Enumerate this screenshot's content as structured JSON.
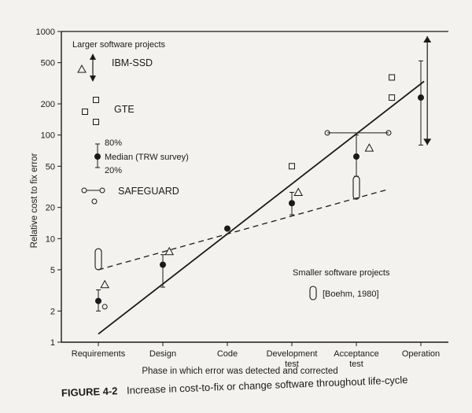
{
  "caption": {
    "label": "FIGURE 4-2",
    "text": "Increase in cost-to-fix or change software throughout life-cycle"
  },
  "chart_data": {
    "type": "scatter",
    "y_scale": "log",
    "ylim": [
      1,
      1000
    ],
    "ylabel": "Relative cost to fix error",
    "xlabel": "Phase in which error was detected and corrected",
    "categories": [
      "Requirements",
      "Design",
      "Code",
      "Development\ntest",
      "Acceptance\ntest",
      "Operation"
    ],
    "yticks": [
      1,
      2,
      5,
      10,
      20,
      50,
      100,
      200,
      500,
      1000
    ],
    "trend_lines": [
      {
        "name": "Larger software projects",
        "style": "solid",
        "from": [
          0,
          1.2
        ],
        "to": [
          5.05,
          330
        ]
      },
      {
        "name": "Smaller software projects",
        "style": "dashed",
        "from": [
          0,
          5
        ],
        "to": [
          4.5,
          30
        ]
      }
    ],
    "series": [
      {
        "name": "Median (TRW survey)",
        "marker": "filled-circle",
        "points": [
          [
            0,
            2.5
          ],
          [
            1,
            5.6
          ],
          [
            2,
            12.5
          ],
          [
            3,
            22
          ],
          [
            4,
            62
          ],
          [
            5,
            230
          ]
        ]
      },
      {
        "name": "80% / 20% range",
        "marker": "range-bar",
        "ranges": [
          [
            0,
            2.0,
            3.2
          ],
          [
            1,
            3.4,
            7.0
          ],
          [
            3,
            17,
            28
          ],
          [
            4,
            40,
            100
          ],
          [
            5,
            80,
            520
          ]
        ]
      },
      {
        "name": "GTE",
        "marker": "open-square",
        "points": [
          [
            3,
            50
          ],
          [
            4.55,
            360
          ],
          [
            4.55,
            230
          ]
        ]
      },
      {
        "name": "SAFEGUARD",
        "marker": "open-circle",
        "points": [
          [
            0.1,
            2.2
          ],
          [
            3.55,
            105
          ],
          [
            4.5,
            105
          ]
        ],
        "connections": [
          [
            [
              3.55,
              105
            ],
            [
              4.5,
              105
            ]
          ]
        ]
      },
      {
        "name": "IBM-SSD",
        "marker": "open-triangle",
        "points": [
          [
            0.1,
            3.6
          ],
          [
            1.1,
            7.5
          ],
          [
            3.1,
            28
          ],
          [
            4.2,
            75
          ]
        ],
        "arrows": [
          [
            5.1,
            550,
            900
          ],
          [
            5.1,
            550,
            80
          ]
        ]
      },
      {
        "name": "[Boehm, 1980]",
        "marker": "open-bar",
        "ranges": [
          [
            0.0,
            5,
            8
          ],
          [
            4.0,
            24,
            40
          ]
        ]
      }
    ],
    "legend": {
      "top_label": "Larger software projects",
      "ibm": "IBM-SSD",
      "gte": "GTE",
      "pct80": "80%",
      "median": "Median (TRW survey)",
      "pct20": "20%",
      "safeguard": "SAFEGUARD",
      "bottom_label": "Smaller software projects",
      "boehm": "[Boehm, 1980]"
    },
    "grid": false
  }
}
